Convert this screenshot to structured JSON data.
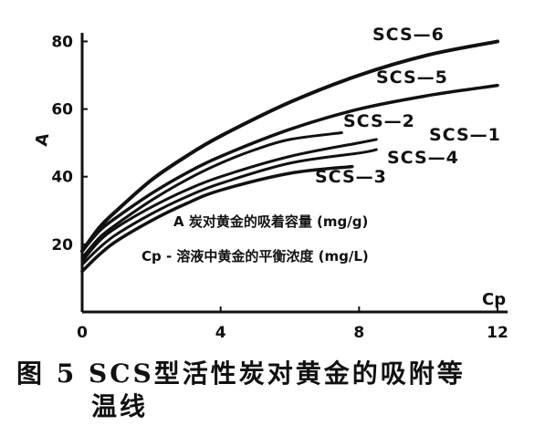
{
  "chart_data": {
    "type": "line",
    "xlabel": "Cp",
    "ylabel": "A",
    "xlim": [
      0,
      12
    ],
    "ylim": [
      0,
      82
    ],
    "xticks": [
      0,
      4,
      8,
      12
    ],
    "yticks": [
      20,
      40,
      60,
      80
    ],
    "xtick_labels": [
      "0",
      "4",
      "8",
      "12"
    ],
    "ytick_labels": [
      "20",
      "40",
      "60",
      "80"
    ],
    "grid": false,
    "series": [
      {
        "name": "SCS—6",
        "x": [
          0,
          0.5,
          1,
          2,
          3,
          4,
          6,
          8,
          10,
          12
        ],
        "y": [
          18,
          25,
          30,
          39,
          46,
          52,
          62,
          70,
          76,
          80
        ]
      },
      {
        "name": "SCS—5",
        "x": [
          0,
          0.5,
          1,
          2,
          3,
          4,
          6,
          8,
          10,
          12
        ],
        "y": [
          18,
          24,
          28,
          35,
          41,
          46,
          54,
          60,
          64,
          67
        ]
      },
      {
        "name": "SCS—2",
        "x": [
          0,
          0.5,
          1,
          2,
          3,
          4,
          5,
          6,
          7.5
        ],
        "y": [
          16,
          22,
          26,
          33,
          39,
          44,
          48,
          51,
          53
        ]
      },
      {
        "name": "SCS—1",
        "x": [
          0,
          0.5,
          1,
          2,
          3,
          4,
          6,
          8,
          8.5
        ],
        "y": [
          15,
          21,
          25,
          31,
          36,
          40,
          46,
          50,
          51
        ]
      },
      {
        "name": "SCS—4",
        "x": [
          0,
          0.5,
          1,
          2,
          3,
          4,
          6,
          8,
          8.5
        ],
        "y": [
          14,
          19,
          23,
          29,
          34,
          38,
          44,
          47,
          48
        ]
      },
      {
        "name": "SCS—3",
        "x": [
          0,
          0.5,
          1,
          2,
          3,
          4,
          6,
          7.8
        ],
        "y": [
          12,
          17,
          21,
          27,
          32,
          36,
          41,
          43
        ]
      }
    ],
    "notes": [
      "A  炭对黄金的吸着容量  (mg/g)",
      "Cp - 溶液中黄金的平衡浓度  (mg/L)"
    ]
  },
  "caption": {
    "line1": "图 5 SCS型活性炭对黄金的吸附等",
    "line2": "温线"
  }
}
